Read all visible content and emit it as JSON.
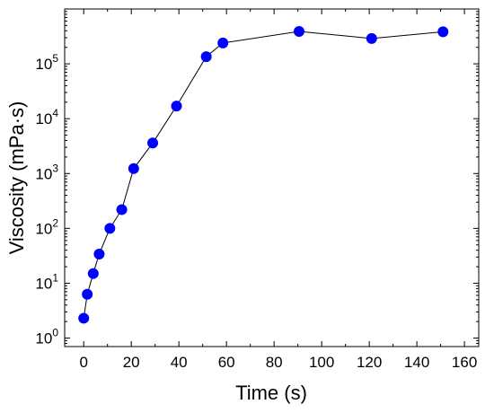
{
  "chart_data": {
    "type": "scatter",
    "title": "",
    "xlabel": "Time (s)",
    "ylabel": "Viscosity (mPa·s)",
    "xlim": [
      -8,
      166
    ],
    "ylim": [
      0.7,
      1000000
    ],
    "y_scale": "log",
    "grid": false,
    "legend": "none",
    "marker_color": "#0000ff",
    "line_color": "#000000",
    "x_ticks": [
      0,
      20,
      40,
      60,
      80,
      100,
      120,
      140,
      160
    ],
    "x_tick_labels": [
      "0",
      "20",
      "40",
      "60",
      "80",
      "100",
      "120",
      "140",
      "160"
    ],
    "y_tick_exponents": [
      0,
      1,
      2,
      3,
      4,
      5
    ],
    "series": [
      {
        "x": [
          0,
          1.5,
          4,
          6.5,
          11,
          16,
          21,
          29,
          39,
          51.5,
          58.5,
          90.5,
          121,
          151
        ],
        "y": [
          2.3,
          6.3,
          15,
          34,
          100,
          220,
          1230,
          3600,
          17000,
          135000,
          240000,
          390000,
          290000,
          385000
        ]
      }
    ]
  }
}
